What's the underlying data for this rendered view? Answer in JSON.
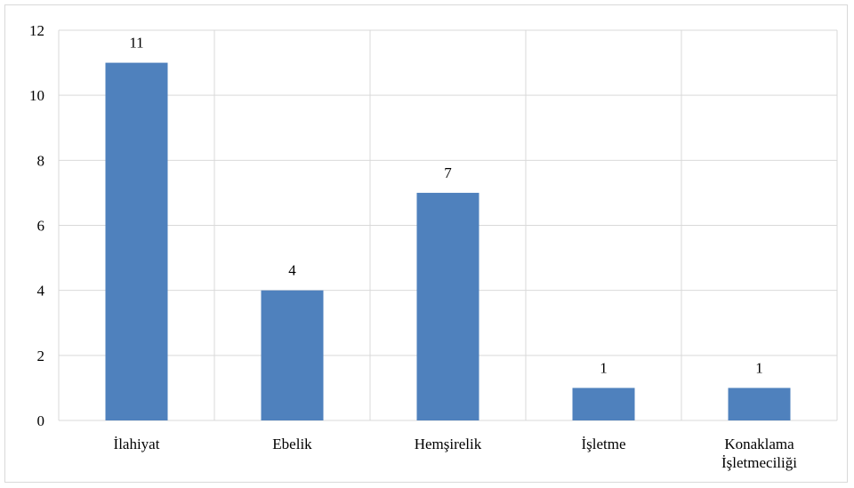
{
  "chart_data": {
    "type": "bar",
    "title": "",
    "xlabel": "",
    "ylabel": "",
    "categories": [
      "İlahiyat",
      "Ebelik",
      "Hemşirelik",
      "İşletme",
      "Konaklama İşletmeciliği"
    ],
    "category_lines": [
      [
        "İlahiyat"
      ],
      [
        "Ebelik"
      ],
      [
        "Hemşirelik"
      ],
      [
        "İşletme"
      ],
      [
        "Konaklama",
        "İşletmeciliği"
      ]
    ],
    "values": [
      11,
      4,
      7,
      1,
      1
    ],
    "data_labels": [
      "11",
      "4",
      "7",
      "1",
      "1"
    ],
    "ylim": [
      0,
      12
    ],
    "yticks": [
      0,
      2,
      4,
      6,
      8,
      10,
      12
    ],
    "grid": true,
    "legend": "none",
    "colors": {
      "bar": "#4f81bd",
      "grid": "#d9d9d9",
      "axis": "#d9d9d9",
      "text": "#000000"
    }
  }
}
